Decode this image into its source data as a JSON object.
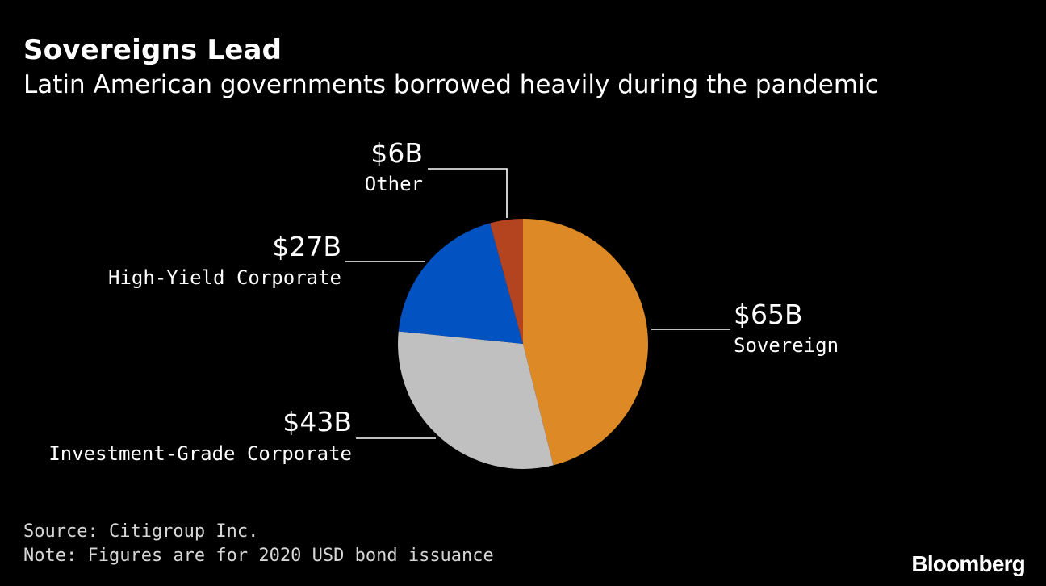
{
  "title": "Sovereigns Lead",
  "subtitle": "Latin American governments borrowed heavily during the pandemic",
  "footer": {
    "source": "Source: Citigroup Inc.",
    "note": "Note: Figures are for 2020 USD bond issuance"
  },
  "brand": "Bloomberg",
  "chart_data": {
    "type": "pie",
    "title": "Sovereigns Lead",
    "subtitle": "Latin American governments borrowed heavily during the pandemic",
    "unit": "USD billions",
    "start_angle_deg": 0,
    "direction": "clockwise",
    "slices": [
      {
        "label": "Sovereign",
        "value": 65,
        "value_label": "$65B",
        "color": "#dd8a26"
      },
      {
        "label": "Investment-Grade Corporate",
        "value": 43,
        "value_label": "$43B",
        "color": "#c0c0c0"
      },
      {
        "label": "High-Yield Corporate",
        "value": 27,
        "value_label": "$27B",
        "color": "#0352c2"
      },
      {
        "label": "Other",
        "value": 6,
        "value_label": "$6B",
        "color": "#b44320"
      }
    ]
  }
}
